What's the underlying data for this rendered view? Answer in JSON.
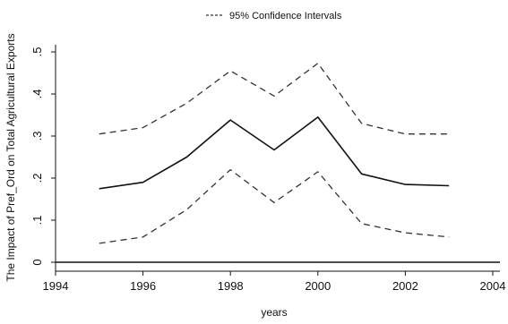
{
  "chart_data": {
    "type": "line",
    "title": "",
    "xlabel": "years",
    "ylabel": "The Impact of Pref_Ord on Total Agricultural Exports",
    "xlim": [
      1994,
      2004
    ],
    "ylim": [
      0,
      0.5
    ],
    "x_ticks": [
      1994,
      1996,
      1998,
      2000,
      2002,
      2004
    ],
    "x_tick_labels": [
      "1994",
      "1996",
      "1998",
      "2000",
      "2002",
      "2004"
    ],
    "y_ticks": [
      0,
      0.1,
      0.2,
      0.3,
      0.4,
      0.5
    ],
    "y_tick_labels": [
      "0",
      ".1",
      ".2",
      ".3",
      ".4",
      ".5"
    ],
    "grid": false,
    "legend_position": "top-center",
    "legend_entries": [
      "95% Confidence Intervals"
    ],
    "x": [
      1995,
      1996,
      1997,
      1998,
      1999,
      2000,
      2001,
      2002,
      2003
    ],
    "series": [
      {
        "values": [
          0.175,
          0.19,
          0.25,
          0.338,
          0.267,
          0.345,
          0.21,
          0.185,
          0.182
        ],
        "style": "solid",
        "color": "#111111"
      },
      {
        "name": "95% Confidence Intervals",
        "values": [
          0.305,
          0.32,
          0.378,
          0.455,
          0.395,
          0.473,
          0.33,
          0.305,
          0.305
        ],
        "style": "dashed",
        "color": "#333333"
      },
      {
        "values": [
          0.045,
          0.06,
          0.125,
          0.22,
          0.142,
          0.215,
          0.092,
          0.07,
          0.06
        ],
        "style": "dashed",
        "color": "#333333"
      }
    ]
  }
}
